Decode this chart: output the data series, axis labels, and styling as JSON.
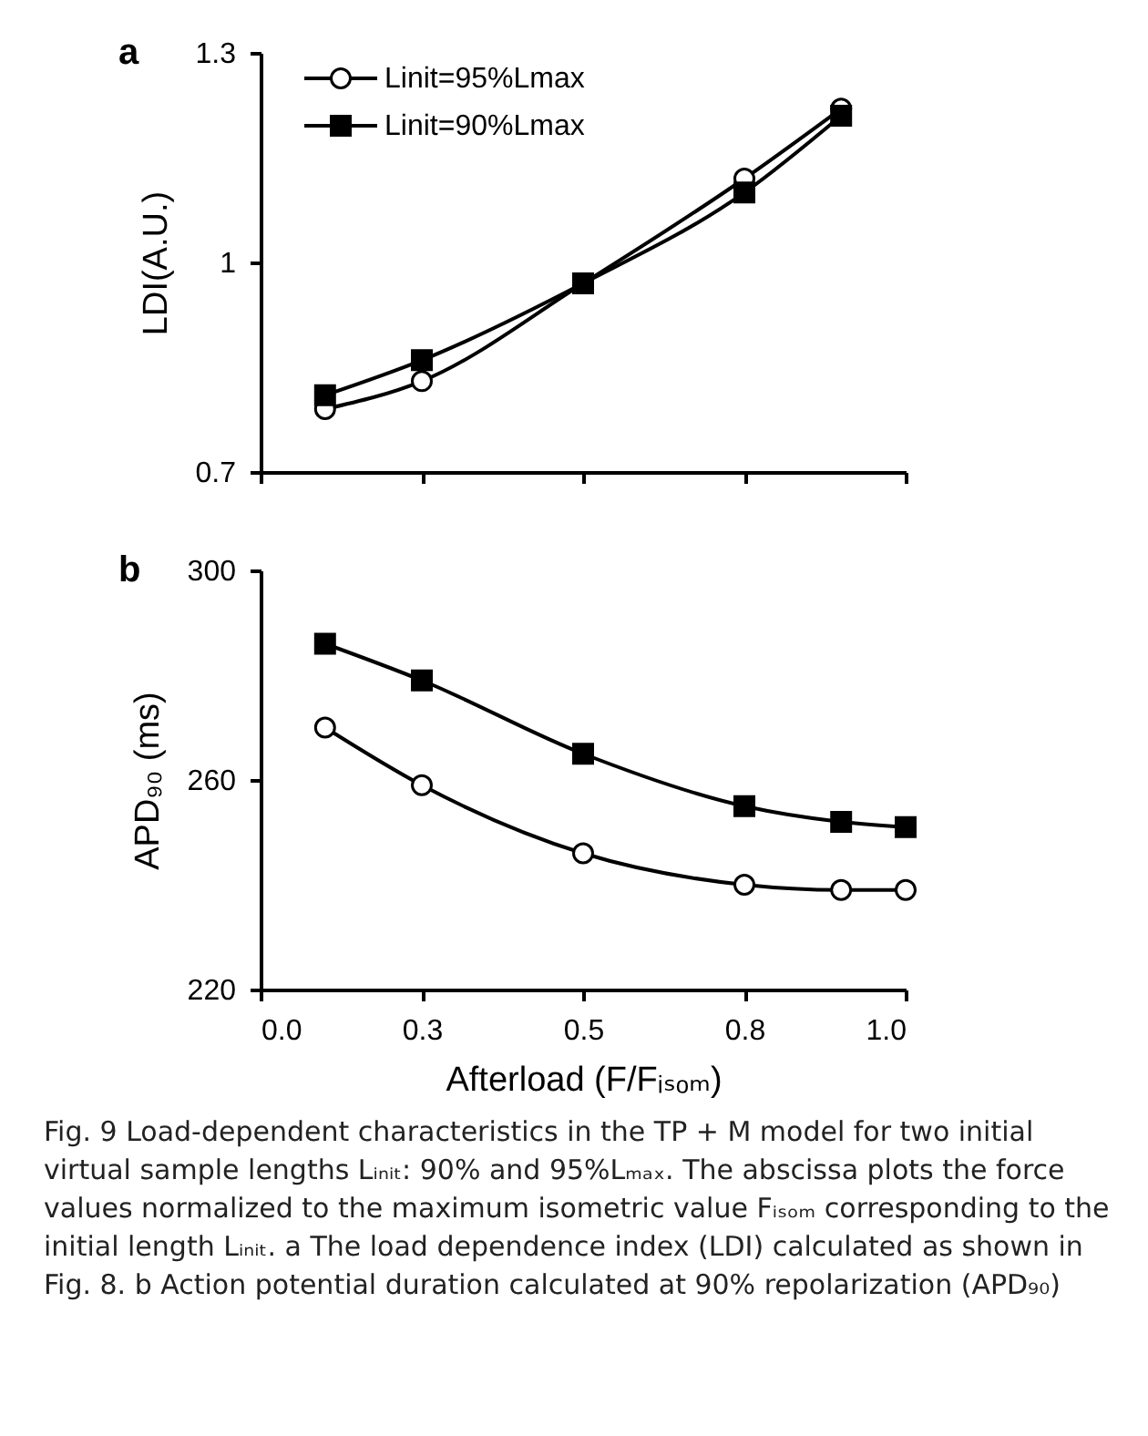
{
  "chart_data": [
    {
      "type": "line",
      "title": "a",
      "ylabel": "LDI(A.U.)",
      "x": [
        0.1,
        0.25,
        0.5,
        0.75,
        0.9
      ],
      "series": [
        {
          "name": "Linit=95%Lmax",
          "color": "#000000",
          "marker": "circle",
          "values": [
            0.79,
            0.83,
            0.97,
            1.12,
            1.22
          ]
        },
        {
          "name": "Linit=90%Lmax",
          "color": "#000000",
          "marker": "square",
          "values": [
            0.81,
            0.86,
            0.97,
            1.1,
            1.21
          ]
        }
      ],
      "xlim": [
        0,
        1
      ],
      "xticks": [
        0,
        0.25,
        0.5,
        0.75,
        1
      ],
      "ylim": [
        0.7,
        1.3
      ],
      "yticks": [
        0.7,
        1,
        1.3
      ],
      "tick_labels": "y",
      "legend": "top left"
    },
    {
      "type": "line",
      "title": "b",
      "xlabel": "Afterload (F/Fᵢₛₒₘ)",
      "ylabel": "APD₉₀ (ms)",
      "x": [
        0.1,
        0.25,
        0.5,
        0.75,
        0.9,
        1.0
      ],
      "series": [
        {
          "color": "#000000",
          "marker": "circle",
          "values": [
            270,
            259,
            246,
            240,
            239,
            239
          ]
        },
        {
          "color": "#000000",
          "marker": "square",
          "values": [
            286,
            279,
            265,
            255,
            252,
            251
          ]
        }
      ],
      "xlim": [
        0,
        1
      ],
      "xticks": [
        {
          "value": 0,
          "label": "0.0"
        },
        {
          "value": 0.25,
          "label": "0.3"
        },
        0.5,
        {
          "value": 0.75,
          "label": "0.8"
        },
        {
          "value": 1,
          "label": "1.0"
        }
      ],
      "ylim": [
        220,
        300
      ],
      "yticks": [
        220,
        260,
        300
      ],
      "annotations": [
        "Fig. 9  Load-dependent characteristics in the TP + M model for two initial virtual sample lengths Lᵢₙᵢₜ: 90% and 95%Lₘₐₓ. The abscissa plots the force values normalized to the maximum isometric value Fᵢₛₒₘ corresponding to the initial length Lᵢₙᵢₜ. a The load dependence index (LDI) calculated as shown in Fig. 8. b Action potential duration calculated at 90% repolarization (APD₉₀)"
      ]
    }
  ]
}
